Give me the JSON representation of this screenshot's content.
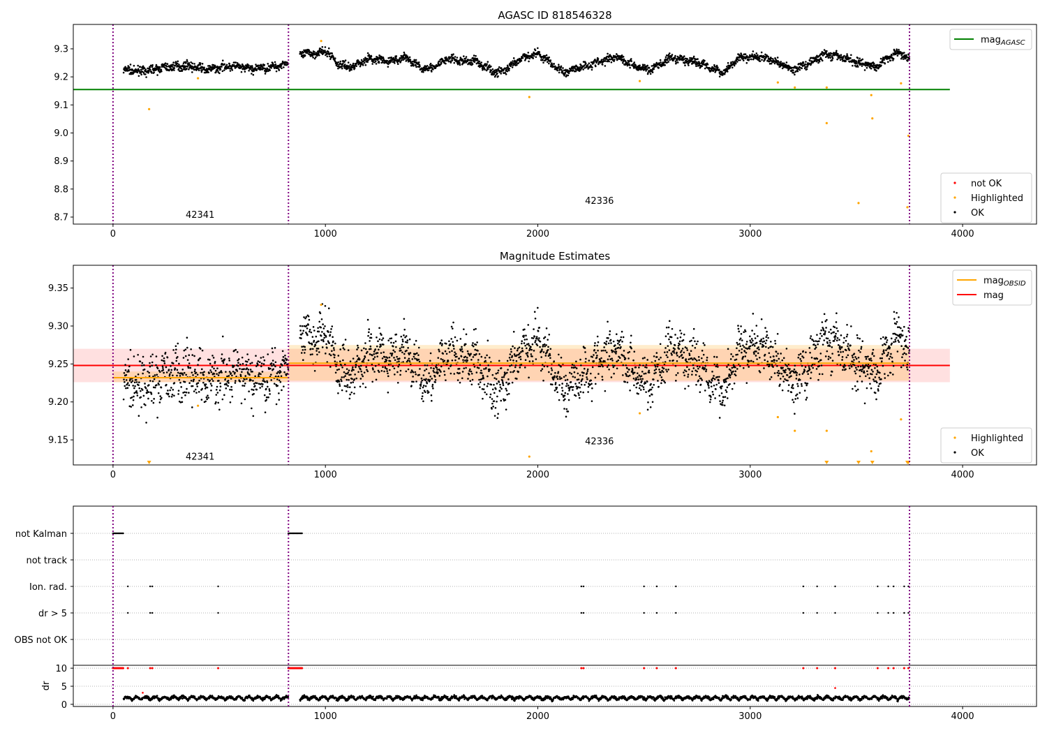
{
  "chart_data": [
    {
      "type": "scatter",
      "title": "AGASC ID 818546328",
      "xlim": [
        -187,
        4348
      ],
      "ylim": [
        8.675,
        9.387
      ],
      "xticks": [
        0,
        1000,
        2000,
        3000,
        4000
      ],
      "yticks": [
        8.7,
        8.8,
        8.9,
        9.0,
        9.1,
        9.2,
        9.3
      ],
      "mag_agasc": 9.155,
      "line_xrange": [
        -187,
        3940
      ],
      "legend_upper": {
        "label": "mag",
        "sub": "AGASC",
        "color": "#008000"
      },
      "legend_lower": [
        {
          "label": "not OK",
          "color": "#ff0000"
        },
        {
          "label": "Highlighted",
          "color": "#ffa500"
        },
        {
          "label": "OK",
          "color": "#000000"
        }
      ],
      "obsid_labels": [
        {
          "text": "42341",
          "x": 410,
          "y": 8.7
        },
        {
          "text": "42336",
          "x": 2290,
          "y": 8.75
        }
      ]
    },
    {
      "type": "scatter",
      "title": "Magnitude Estimates",
      "xlim": [
        -187,
        4348
      ],
      "ylim": [
        9.117,
        9.38
      ],
      "xticks": [
        0,
        1000,
        2000,
        3000,
        4000
      ],
      "yticks": [
        9.15,
        9.2,
        9.25,
        9.3,
        9.35
      ],
      "mag": 9.248,
      "mag_band": [
        9.226,
        9.27
      ],
      "mag_obsid": [
        {
          "x": [
            0,
            826
          ],
          "y": 9.232,
          "band": [
            9.226,
            9.24
          ]
        },
        {
          "x": [
            826,
            3750
          ],
          "y": 9.251,
          "band": [
            9.228,
            9.275
          ]
        }
      ],
      "legend_upper": [
        {
          "label": "mag",
          "sub": "OBSID",
          "color": "#ffa500"
        },
        {
          "label": "mag",
          "sub": "",
          "color": "#ff0000"
        }
      ],
      "legend_lower": [
        {
          "label": "Highlighted",
          "color": "#ffa500"
        },
        {
          "label": "OK",
          "color": "#000000"
        }
      ],
      "obsid_labels": [
        {
          "text": "42341",
          "x": 410,
          "y": 9.125
        },
        {
          "text": "42336",
          "x": 2290,
          "y": 9.145
        }
      ]
    },
    {
      "type": "scatter",
      "flag_rows": [
        "not Kalman",
        "not track",
        "Ion. rad.",
        "dr > 5",
        "OBS not OK"
      ],
      "dr_label": "dr",
      "dr_yticks": [
        0,
        5,
        10
      ],
      "dr_ylim": [
        -0.6,
        10.8
      ],
      "xticks": [
        0,
        1000,
        2000,
        3000,
        4000
      ],
      "not_kalman_ranges": [
        [
          0,
          50
        ],
        [
          826,
          890
        ]
      ],
      "ion_rad_x": [
        70,
        175,
        185,
        495,
        2205,
        2215,
        2500,
        2560,
        2650,
        3250,
        3315,
        3400,
        3600,
        3650,
        3675,
        3725,
        3745
      ],
      "dr_outliers": [
        {
          "x": 140,
          "y": 3.2
        },
        {
          "x": 3400,
          "y": 4.5
        }
      ]
    }
  ],
  "obsid_boundaries": [
    0,
    826,
    3750
  ],
  "trend": [
    [
      50,
      9.225
    ],
    [
      150,
      9.22
    ],
    [
      250,
      9.235
    ],
    [
      350,
      9.24
    ],
    [
      450,
      9.225
    ],
    [
      550,
      9.24
    ],
    [
      650,
      9.228
    ],
    [
      750,
      9.235
    ],
    [
      826,
      9.25
    ],
    [
      880,
      9.28
    ],
    [
      950,
      9.285
    ],
    [
      1010,
      9.29
    ],
    [
      1060,
      9.245
    ],
    [
      1120,
      9.235
    ],
    [
      1200,
      9.265
    ],
    [
      1300,
      9.255
    ],
    [
      1380,
      9.27
    ],
    [
      1450,
      9.23
    ],
    [
      1520,
      9.235
    ],
    [
      1570,
      9.265
    ],
    [
      1650,
      9.255
    ],
    [
      1700,
      9.26
    ],
    [
      1800,
      9.215
    ],
    [
      1850,
      9.225
    ],
    [
      1930,
      9.268
    ],
    [
      2000,
      9.285
    ],
    [
      2060,
      9.25
    ],
    [
      2120,
      9.215
    ],
    [
      2200,
      9.235
    ],
    [
      2300,
      9.255
    ],
    [
      2370,
      9.275
    ],
    [
      2450,
      9.24
    ],
    [
      2530,
      9.225
    ],
    [
      2620,
      9.265
    ],
    [
      2700,
      9.26
    ],
    [
      2780,
      9.245
    ],
    [
      2870,
      9.215
    ],
    [
      2950,
      9.27
    ],
    [
      3050,
      9.27
    ],
    [
      3120,
      9.255
    ],
    [
      3200,
      9.225
    ],
    [
      3280,
      9.25
    ],
    [
      3350,
      9.28
    ],
    [
      3430,
      9.27
    ],
    [
      3520,
      9.25
    ],
    [
      3590,
      9.235
    ],
    [
      3660,
      9.275
    ],
    [
      3700,
      9.285
    ],
    [
      3750,
      9.265
    ]
  ],
  "noise": 0.012,
  "highlighted": [
    [
      170,
      9.085
    ],
    [
      400,
      9.195
    ],
    [
      980,
      9.328
    ],
    [
      1960,
      9.128
    ],
    [
      2480,
      9.185
    ],
    [
      3130,
      9.18
    ],
    [
      3210,
      9.162
    ],
    [
      3360,
      9.162
    ],
    [
      3360,
      9.035
    ],
    [
      3510,
      8.75
    ],
    [
      3570,
      9.135
    ],
    [
      3575,
      9.052
    ],
    [
      3710,
      9.177
    ],
    [
      3740,
      8.735
    ],
    [
      3745,
      8.99
    ]
  ]
}
